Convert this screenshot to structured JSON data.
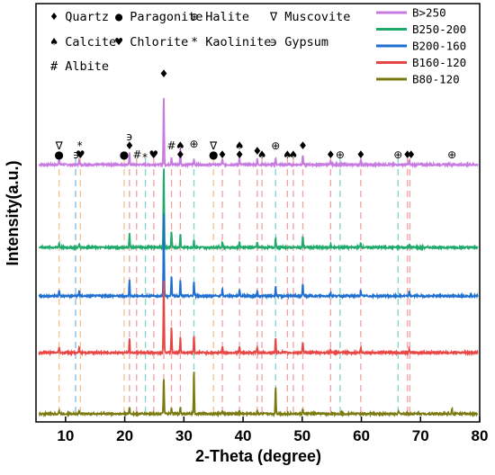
{
  "chart_data": {
    "type": "line",
    "xlabel": "2-Theta (degree)",
    "ylabel": "Intensity(a.u.)",
    "xlim": [
      5,
      80
    ],
    "x_ticks": [
      10,
      20,
      30,
      40,
      50,
      60,
      70,
      80
    ],
    "series": [
      {
        "name": "B>250",
        "color": "#c77be0",
        "peaks": [
          [
            8.9,
            0.6
          ],
          [
            12.3,
            0.5
          ],
          [
            20.8,
            1.0
          ],
          [
            26.6,
            6.2
          ],
          [
            27.9,
            0.7
          ],
          [
            29.4,
            1.5
          ],
          [
            31.7,
            0.5
          ],
          [
            36.5,
            0.5
          ],
          [
            39.4,
            0.6
          ],
          [
            42.4,
            0.5
          ],
          [
            45.5,
            0.6
          ],
          [
            50.1,
            0.9
          ],
          [
            54.8,
            0.3
          ],
          [
            59.9,
            0.5
          ],
          [
            68.1,
            0.4
          ]
        ]
      },
      {
        "name": "B250-200",
        "color": "#1faa6b",
        "peaks": [
          [
            8.9,
            0.4
          ],
          [
            12.3,
            0.3
          ],
          [
            20.8,
            1.3
          ],
          [
            26.6,
            7.4
          ],
          [
            27.9,
            1.4
          ],
          [
            29.4,
            1.3
          ],
          [
            31.7,
            0.7
          ],
          [
            36.5,
            0.5
          ],
          [
            39.4,
            0.5
          ],
          [
            42.4,
            0.5
          ],
          [
            45.5,
            0.9
          ],
          [
            50.1,
            1.0
          ],
          [
            54.8,
            0.3
          ],
          [
            59.9,
            0.4
          ],
          [
            68.1,
            0.3
          ]
        ]
      },
      {
        "name": "B200-160",
        "color": "#1f6fd0",
        "peaks": [
          [
            8.9,
            0.5
          ],
          [
            12.3,
            0.5
          ],
          [
            20.8,
            1.5
          ],
          [
            26.6,
            7.6
          ],
          [
            27.9,
            1.9
          ],
          [
            29.4,
            1.4
          ],
          [
            31.7,
            1.3
          ],
          [
            36.5,
            0.6
          ],
          [
            39.4,
            0.6
          ],
          [
            42.4,
            0.5
          ],
          [
            45.5,
            0.9
          ],
          [
            50.1,
            1.1
          ],
          [
            54.8,
            0.3
          ],
          [
            59.9,
            0.5
          ],
          [
            68.1,
            0.4
          ]
        ]
      },
      {
        "name": "B160-120",
        "color": "#e84545",
        "peaks": [
          [
            8.9,
            0.5
          ],
          [
            12.3,
            0.5
          ],
          [
            20.8,
            1.2
          ],
          [
            26.6,
            6.8
          ],
          [
            27.9,
            2.3
          ],
          [
            29.4,
            1.4
          ],
          [
            31.7,
            1.6
          ],
          [
            36.5,
            0.5
          ],
          [
            39.4,
            0.5
          ],
          [
            42.4,
            0.5
          ],
          [
            45.5,
            1.3
          ],
          [
            50.1,
            0.9
          ],
          [
            54.8,
            0.3
          ],
          [
            59.9,
            0.4
          ],
          [
            68.1,
            0.4
          ]
        ]
      },
      {
        "name": "B80-120",
        "color": "#7a7a10",
        "peaks": [
          [
            8.9,
            0.3
          ],
          [
            12.3,
            0.3
          ],
          [
            20.8,
            0.6
          ],
          [
            26.6,
            3.3
          ],
          [
            27.9,
            0.5
          ],
          [
            29.4,
            0.6
          ],
          [
            31.7,
            3.9
          ],
          [
            36.5,
            0.3
          ],
          [
            39.4,
            0.3
          ],
          [
            42.4,
            0.3
          ],
          [
            45.5,
            2.5
          ],
          [
            50.1,
            0.4
          ],
          [
            56.6,
            0.2
          ],
          [
            66.3,
            0.2
          ],
          [
            75.3,
            0.5
          ]
        ]
      }
    ],
    "reference_lines": [
      {
        "x": 8.9,
        "color": "#f2c48a"
      },
      {
        "x": 11.7,
        "color": "#7fb8e8"
      },
      {
        "x": 12.5,
        "color": "#f2c48a"
      },
      {
        "x": 19.9,
        "color": "#f2c48a"
      },
      {
        "x": 20.8,
        "color": "#f2a0a0"
      },
      {
        "x": 22.0,
        "color": "#f2a0a0"
      },
      {
        "x": 23.5,
        "color": "#7fd6c8"
      },
      {
        "x": 24.9,
        "color": "#f2a0a0"
      },
      {
        "x": 26.6,
        "color": "#f2a0a0"
      },
      {
        "x": 27.9,
        "color": "#f2a0a0"
      },
      {
        "x": 29.4,
        "color": "#f2a0a0"
      },
      {
        "x": 31.7,
        "color": "#7fd6c8"
      },
      {
        "x": 35.0,
        "color": "#f2c48a"
      },
      {
        "x": 36.5,
        "color": "#f2a0a0"
      },
      {
        "x": 39.4,
        "color": "#f2a0a0"
      },
      {
        "x": 42.4,
        "color": "#f2a0a0"
      },
      {
        "x": 43.2,
        "color": "#f2a0a0"
      },
      {
        "x": 45.5,
        "color": "#7fd6c8"
      },
      {
        "x": 47.5,
        "color": "#f2a0a0"
      },
      {
        "x": 48.5,
        "color": "#f2a0a0"
      },
      {
        "x": 50.1,
        "color": "#f2a0a0"
      },
      {
        "x": 54.8,
        "color": "#f2a0a0"
      },
      {
        "x": 56.4,
        "color": "#7fd6c8"
      },
      {
        "x": 59.9,
        "color": "#f2a0a0"
      },
      {
        "x": 66.2,
        "color": "#7fd6c8"
      },
      {
        "x": 67.8,
        "color": "#f2a0a0"
      },
      {
        "x": 68.2,
        "color": "#f2a0a0"
      }
    ],
    "peak_markers": [
      {
        "x": 8.9,
        "symbol": "∇",
        "row": 1
      },
      {
        "x": 8.9,
        "symbol": "●",
        "row": 0
      },
      {
        "x": 11.8,
        "symbol": "϶",
        "row": 0
      },
      {
        "x": 12.4,
        "symbol": "*",
        "row": 1
      },
      {
        "x": 12.5,
        "symbol": "♥",
        "row": 0
      },
      {
        "x": 19.9,
        "symbol": "●",
        "row": 0
      },
      {
        "x": 20.8,
        "symbol": "϶",
        "row": 2
      },
      {
        "x": 20.8,
        "symbol": "♦",
        "row": 1
      },
      {
        "x": 22.1,
        "symbol": "#",
        "row": 0
      },
      {
        "x": 23.4,
        "symbol": "*",
        "row": -0.3
      },
      {
        "x": 24.9,
        "symbol": "♥",
        "row": 0
      },
      {
        "x": 26.6,
        "symbol": "♦",
        "row": 9.0
      },
      {
        "x": 27.9,
        "symbol": "#",
        "row": 1
      },
      {
        "x": 29.4,
        "symbol": "♠",
        "row": 1
      },
      {
        "x": 29.4,
        "symbol": "♦",
        "row": 0
      },
      {
        "x": 31.7,
        "symbol": "⊕",
        "row": 1.2
      },
      {
        "x": 35.0,
        "symbol": "∇",
        "row": 1
      },
      {
        "x": 35.0,
        "symbol": "●",
        "row": 0
      },
      {
        "x": 36.5,
        "symbol": "♦",
        "row": 0
      },
      {
        "x": 39.4,
        "symbol": "♠",
        "row": 1
      },
      {
        "x": 39.4,
        "symbol": "♦",
        "row": 0
      },
      {
        "x": 42.4,
        "symbol": "♦",
        "row": 0.4
      },
      {
        "x": 43.2,
        "symbol": "♠",
        "row": 0
      },
      {
        "x": 45.5,
        "symbol": "⊕",
        "row": 1
      },
      {
        "x": 47.5,
        "symbol": "♠",
        "row": 0
      },
      {
        "x": 48.5,
        "symbol": "♠",
        "row": 0
      },
      {
        "x": 50.1,
        "symbol": "♦",
        "row": 1
      },
      {
        "x": 54.8,
        "symbol": "♦",
        "row": 0
      },
      {
        "x": 56.4,
        "symbol": "⊕",
        "row": 0
      },
      {
        "x": 59.9,
        "symbol": "♦",
        "row": 0
      },
      {
        "x": 66.2,
        "symbol": "⊕",
        "row": 0
      },
      {
        "x": 67.8,
        "symbol": "♦",
        "row": 0
      },
      {
        "x": 68.4,
        "symbol": "♦",
        "row": 0
      },
      {
        "x": 75.3,
        "symbol": "⊕",
        "row": 0
      }
    ],
    "mineral_key": [
      {
        "symbol": "♦",
        "name": "Quartz"
      },
      {
        "symbol": "●",
        "name": "Paragonite"
      },
      {
        "symbol": "⊕",
        "name": "Halite"
      },
      {
        "symbol": "∇",
        "name": "Muscovite"
      },
      {
        "symbol": "♠",
        "name": "Calcite"
      },
      {
        "symbol": "♥",
        "name": "Chlorite"
      },
      {
        "symbol": "*",
        "name": "Kaolinite"
      },
      {
        "symbol": "϶",
        "name": "Gypsum"
      },
      {
        "symbol": "#",
        "name": "Albite"
      }
    ],
    "legend": [
      "B>250",
      "B250-200",
      "B200-160",
      "B160-120",
      "B80-120"
    ],
    "legend_position": "top-right",
    "grid": false
  }
}
